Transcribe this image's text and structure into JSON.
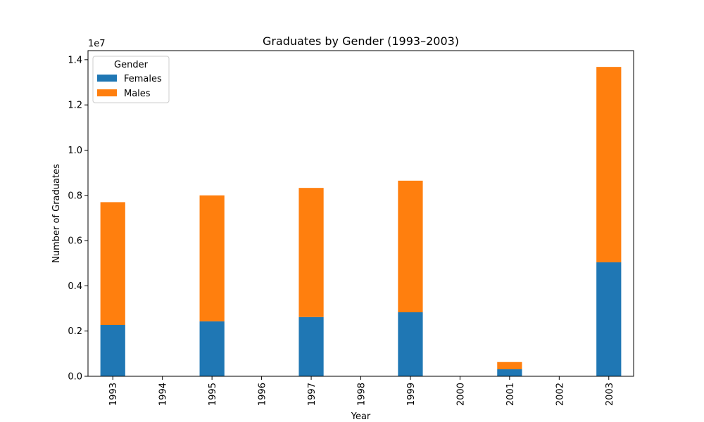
{
  "chart_data": {
    "type": "bar",
    "stacked": true,
    "title": "Graduates by Gender (1993–2003)",
    "xlabel": "Year",
    "ylabel": "Number of Graduates",
    "y_offset_label": "1e7",
    "categories": [
      "1993",
      "1994",
      "1995",
      "1996",
      "1997",
      "1998",
      "1999",
      "2000",
      "2001",
      "2002",
      "2003"
    ],
    "ylim": [
      0,
      14400000
    ],
    "yticks": [
      0,
      2000000,
      4000000,
      6000000,
      8000000,
      10000000,
      12000000,
      14000000
    ],
    "ytick_labels": [
      "0.0",
      "0.2",
      "0.4",
      "0.6",
      "0.8",
      "1.0",
      "1.2",
      "1.4"
    ],
    "series": [
      {
        "name": "Females",
        "color": "#1f77b4",
        "values": [
          2270000,
          0,
          2430000,
          0,
          2620000,
          0,
          2830000,
          0,
          310000,
          0,
          5040000
        ]
      },
      {
        "name": "Males",
        "color": "#ff7f0e",
        "values": [
          5430000,
          0,
          5570000,
          0,
          5710000,
          0,
          5820000,
          0,
          320000,
          0,
          8640000
        ]
      }
    ],
    "legend": {
      "title": "Gender",
      "placement": "top-left"
    },
    "grid": false
  }
}
